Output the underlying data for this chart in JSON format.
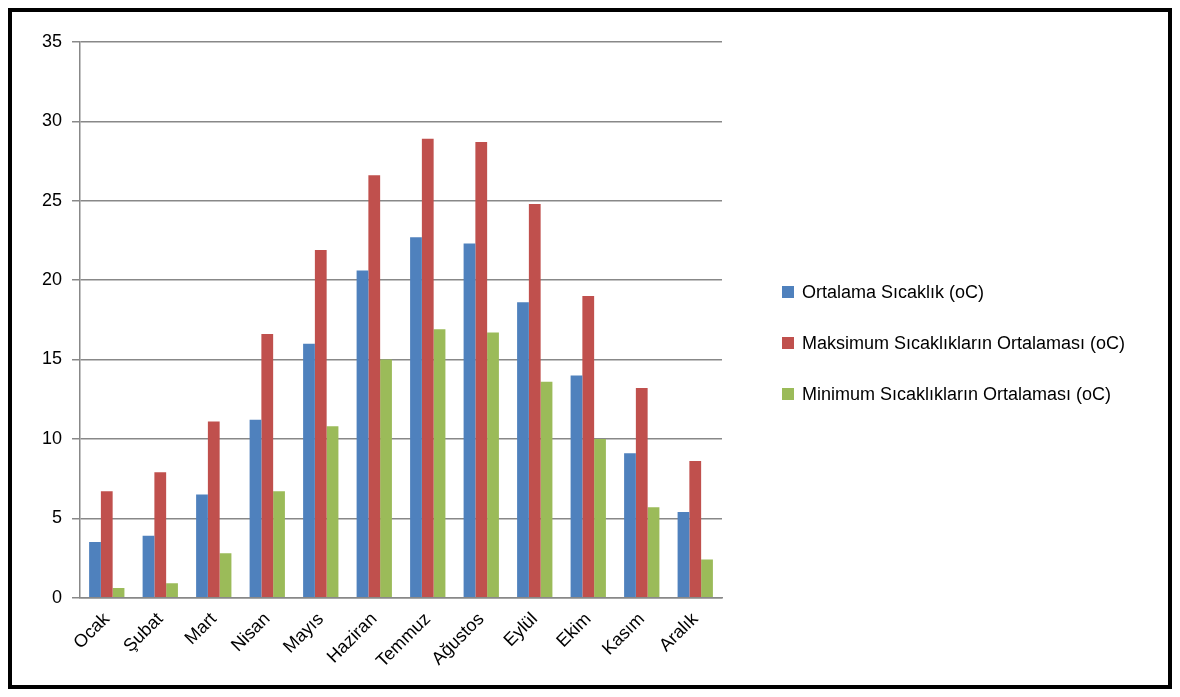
{
  "chart_data": {
    "type": "bar",
    "categories": [
      "Ocak",
      "Şubat",
      "Mart",
      "Nisan",
      "Mayıs",
      "Haziran",
      "Temmuz",
      "Ağustos",
      "Eylül",
      "Ekim",
      "Kasım",
      "Aralık"
    ],
    "series": [
      {
        "name": "Ortalama Sıcaklık (oC)",
        "color": "#4f81bd",
        "values": [
          3.5,
          3.9,
          6.5,
          11.2,
          16.0,
          20.6,
          22.7,
          22.3,
          18.6,
          14.0,
          9.1,
          5.4
        ]
      },
      {
        "name": "Maksimum Sıcaklıkların Ortalaması (oC)",
        "color": "#c0504d",
        "values": [
          6.7,
          7.9,
          11.1,
          16.6,
          21.9,
          26.6,
          28.9,
          28.7,
          24.8,
          19.0,
          13.2,
          8.6
        ]
      },
      {
        "name": "Minimum Sıcaklıkların Ortalaması (oC)",
        "color": "#9bbb59",
        "values": [
          0.6,
          0.9,
          2.8,
          6.7,
          10.8,
          15.0,
          16.9,
          16.7,
          13.6,
          10.0,
          5.7,
          2.4
        ]
      }
    ],
    "ylim": [
      0,
      35
    ],
    "yticks": [
      0,
      5,
      10,
      15,
      20,
      25,
      30,
      35
    ],
    "grid": "y",
    "legend": "right"
  }
}
